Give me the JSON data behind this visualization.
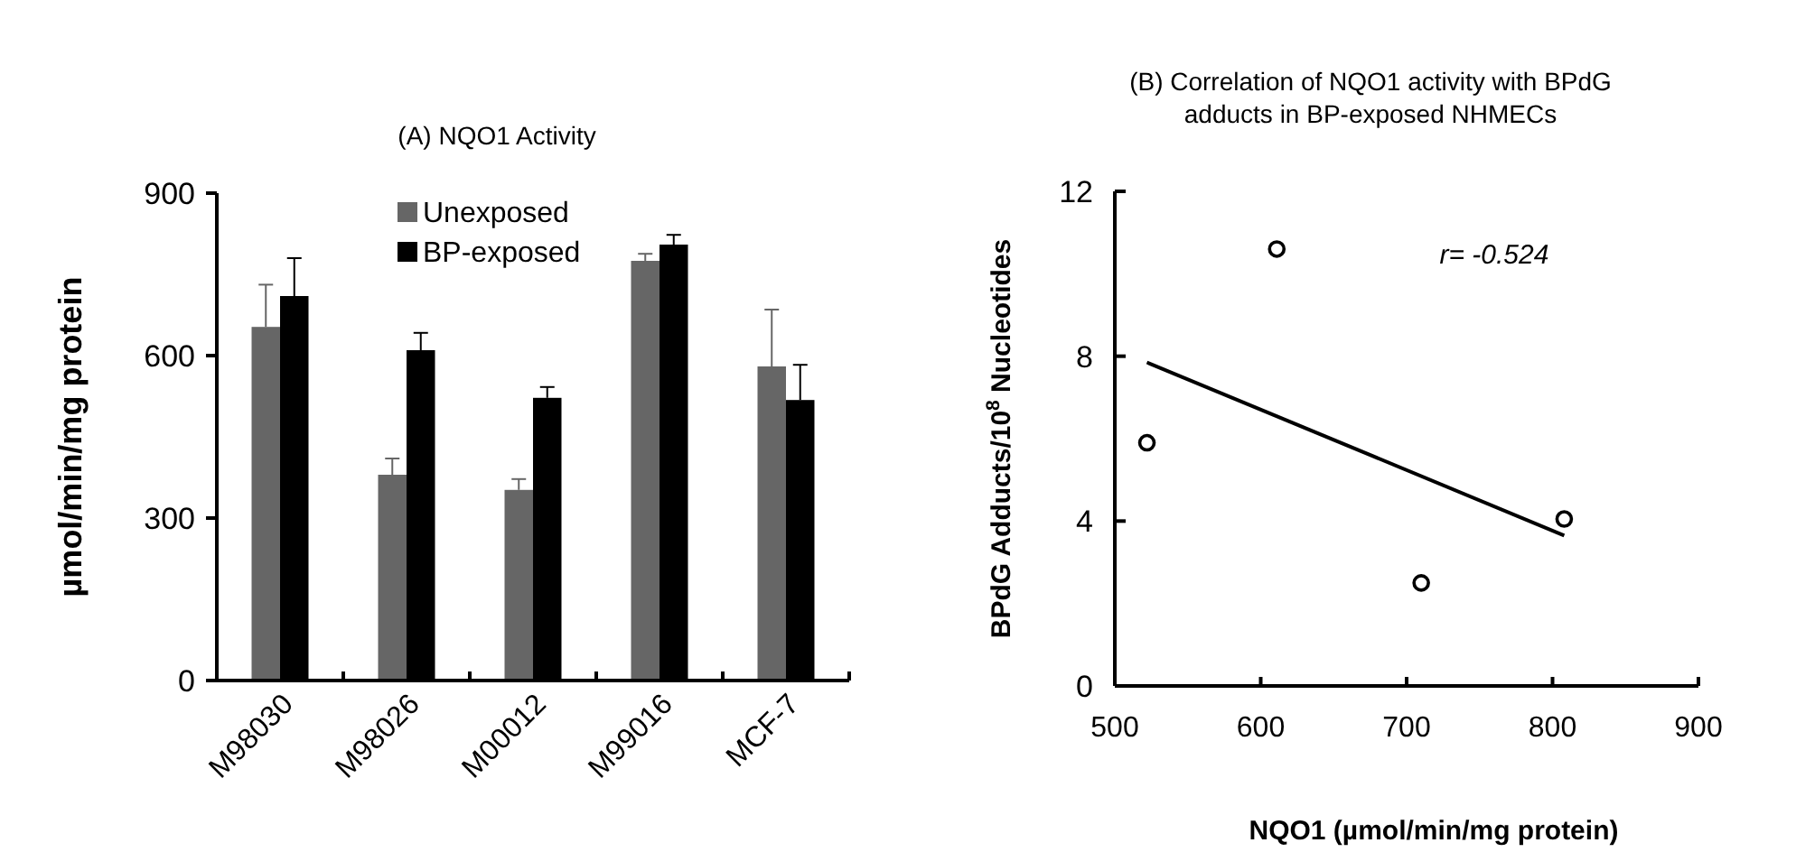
{
  "chart_data": [
    {
      "type": "bar",
      "title": "(A) NQO1 Activity",
      "ylabel": "µmol/min/mg protein",
      "categories": [
        "M98030",
        "M98026",
        "M00012",
        "M99016",
        "MCF-7"
      ],
      "series": [
        {
          "name": "Unexposed",
          "color": "#666666",
          "values": [
            653,
            380,
            352,
            775,
            580
          ],
          "errors": [
            [
              653,
              731
            ],
            [
              380,
              410
            ],
            [
              352,
              372
            ],
            [
              775,
              788
            ],
            [
              580,
              685
            ]
          ]
        },
        {
          "name": "BP-exposed",
          "color": "#000000",
          "values": [
            710,
            610,
            522,
            805,
            518
          ],
          "errors": [
            [
              710,
              780
            ],
            [
              610,
              642
            ],
            [
              522,
              542
            ],
            [
              805,
              823
            ],
            [
              518,
              583
            ]
          ]
        }
      ],
      "ylim": [
        0,
        900
      ],
      "yticks": [
        0,
        300,
        600,
        900
      ],
      "grid": false,
      "legend": "top"
    },
    {
      "type": "scatter",
      "title": "(B) Correlation of NQO1 activity with BPdG adducts in BP-exposed NHMECs",
      "xlabel": "NQO1 (µmol/min/mg protein)",
      "ylabel": "BPdG Adducts/10$^{8}$ Nucleotides",
      "series": [
        {
          "type": "scatter",
          "marker": "circle",
          "color": "#000000",
          "x": [
            522,
            611,
            710,
            808
          ],
          "values": [
            5.9,
            10.6,
            2.5,
            4.05
          ]
        },
        {
          "type": "line",
          "marker": "none",
          "color": "#000000",
          "x": [
            522,
            808
          ],
          "values": [
            7.85,
            3.65
          ]
        }
      ],
      "xlim": [
        500,
        900
      ],
      "xticks": [
        500,
        600,
        700,
        800,
        900
      ],
      "ylim": [
        0,
        12
      ],
      "yticks": [
        0,
        4,
        8,
        12
      ],
      "grid": false,
      "annotations": [
        "r= -0.524"
      ]
    }
  ]
}
